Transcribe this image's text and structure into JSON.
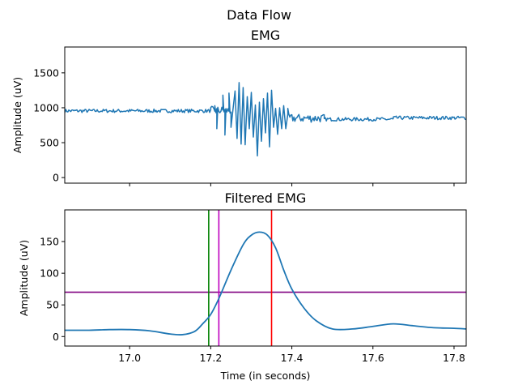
{
  "figure": {
    "title": "Data Flow"
  },
  "chart_data": [
    {
      "type": "line",
      "title": "EMG",
      "xlabel": "",
      "ylabel": "Amplitude (uV)",
      "xlim": [
        16.84,
        17.83
      ],
      "ylim": [
        -80,
        1870
      ],
      "xticks": [
        17.0,
        17.2,
        17.4,
        17.6,
        17.8
      ],
      "xtick_labels_shown": false,
      "yticks": [
        0,
        500,
        1000,
        1500
      ],
      "ytick_labels": [
        "0",
        "500",
        "1000",
        "1500"
      ],
      "grid": false,
      "series": [
        {
          "color": "#1f77b4",
          "baseline_segments": [
            {
              "x_from": 16.84,
              "x_to": 17.2,
              "level": 955,
              "noise": 25
            },
            {
              "x_from": 17.2,
              "x_to": 17.25,
              "level": 960,
              "noise": 60
            },
            {
              "x_from": 17.39,
              "x_to": 17.48,
              "level": 850,
              "noise": 60
            },
            {
              "x_from": 17.48,
              "x_to": 17.65,
              "level": 835,
              "noise": 25
            },
            {
              "x_from": 17.65,
              "x_to": 17.83,
              "level": 855,
              "noise": 25
            }
          ],
          "burst_peaks": [
            {
              "x": 17.21,
              "y": 1030
            },
            {
              "x": 17.215,
              "y": 700
            },
            {
              "x": 17.23,
              "y": 1180
            },
            {
              "x": 17.235,
              "y": 610
            },
            {
              "x": 17.245,
              "y": 1210
            },
            {
              "x": 17.25,
              "y": 720
            },
            {
              "x": 17.26,
              "y": 1240
            },
            {
              "x": 17.265,
              "y": 560
            },
            {
              "x": 17.27,
              "y": 1360
            },
            {
              "x": 17.275,
              "y": 480
            },
            {
              "x": 17.28,
              "y": 1290
            },
            {
              "x": 17.285,
              "y": 470
            },
            {
              "x": 17.29,
              "y": 1160
            },
            {
              "x": 17.295,
              "y": 700
            },
            {
              "x": 17.3,
              "y": 1220
            },
            {
              "x": 17.305,
              "y": 580
            },
            {
              "x": 17.31,
              "y": 1040
            },
            {
              "x": 17.315,
              "y": 310
            },
            {
              "x": 17.32,
              "y": 1080
            },
            {
              "x": 17.325,
              "y": 520
            },
            {
              "x": 17.33,
              "y": 1130
            },
            {
              "x": 17.335,
              "y": 640
            },
            {
              "x": 17.34,
              "y": 1210
            },
            {
              "x": 17.345,
              "y": 440
            },
            {
              "x": 17.35,
              "y": 1250
            },
            {
              "x": 17.355,
              "y": 720
            },
            {
              "x": 17.36,
              "y": 990
            },
            {
              "x": 17.365,
              "y": 620
            },
            {
              "x": 17.37,
              "y": 1000
            },
            {
              "x": 17.375,
              "y": 700
            },
            {
              "x": 17.38,
              "y": 1030
            },
            {
              "x": 17.385,
              "y": 700
            },
            {
              "x": 17.39,
              "y": 990
            }
          ]
        }
      ]
    },
    {
      "type": "line",
      "title": "Filtered EMG",
      "xlabel": "Time (in seconds)",
      "ylabel": "Amplitude (uV)",
      "xlim": [
        16.84,
        17.83
      ],
      "ylim": [
        -15,
        200
      ],
      "xticks": [
        17.0,
        17.2,
        17.4,
        17.6,
        17.8
      ],
      "xtick_labels": [
        "17.0",
        "17.2",
        "17.4",
        "17.6",
        "17.8"
      ],
      "yticks": [
        0,
        50,
        100,
        150
      ],
      "ytick_labels": [
        "0",
        "50",
        "100",
        "150"
      ],
      "grid": false,
      "series": [
        {
          "color": "#1f77b4",
          "x": [
            16.84,
            16.9,
            16.95,
            17.0,
            17.05,
            17.1,
            17.13,
            17.16,
            17.18,
            17.2,
            17.22,
            17.25,
            17.28,
            17.3,
            17.32,
            17.34,
            17.36,
            17.38,
            17.4,
            17.43,
            17.46,
            17.5,
            17.55,
            17.6,
            17.65,
            17.7,
            17.75,
            17.8,
            17.83
          ],
          "y": [
            10,
            10,
            11,
            11,
            9,
            4,
            3,
            8,
            20,
            35,
            60,
            105,
            145,
            160,
            165,
            160,
            140,
            105,
            75,
            45,
            25,
            12,
            12,
            16,
            20,
            17,
            14,
            13,
            12
          ]
        }
      ],
      "reference_lines": [
        {
          "orientation": "horizontal",
          "value": 70,
          "color": "#800080"
        },
        {
          "orientation": "vertical",
          "value": 17.195,
          "color": "#008000"
        },
        {
          "orientation": "vertical",
          "value": 17.22,
          "color": "#bf00bf"
        },
        {
          "orientation": "vertical",
          "value": 17.35,
          "color": "#ff0000"
        }
      ]
    }
  ]
}
